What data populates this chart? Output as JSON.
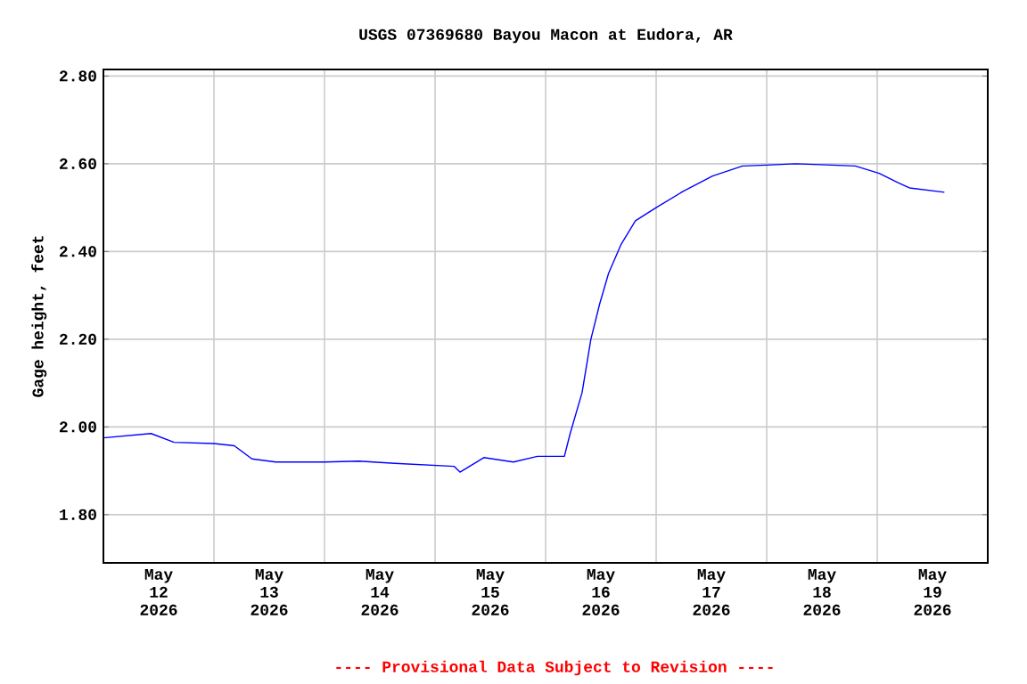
{
  "chart_data": {
    "type": "line",
    "title": "USGS 07369680 Bayou Macon at Eudora, AR",
    "ylabel": "Gage height, feet",
    "annotations": [
      "---- Provisional Data Subject to Revision ----"
    ],
    "x": [
      "2026-05-12T00:00",
      "2026-05-12T10:20",
      "2026-05-12T15:20",
      "2026-05-13T00:00",
      "2026-05-13T04:25",
      "2026-05-13T08:15",
      "2026-05-13T13:25",
      "2026-05-14T00:00",
      "2026-05-14T07:30",
      "2026-05-14T15:15",
      "2026-05-15T04:10",
      "2026-05-15T05:25",
      "2026-05-15T10:35",
      "2026-05-15T17:00",
      "2026-05-15T22:15",
      "2026-05-16T04:05",
      "2026-05-16T05:20",
      "2026-05-16T07:55",
      "2026-05-16T09:50",
      "2026-05-16T11:45",
      "2026-05-16T13:40",
      "2026-05-16T16:20",
      "2026-05-16T19:30",
      "2026-05-17T00:00",
      "2026-05-17T05:50",
      "2026-05-17T12:15",
      "2026-05-17T18:45",
      "2026-05-18T00:00",
      "2026-05-18T06:15",
      "2026-05-18T14:10",
      "2026-05-18T19:15",
      "2026-05-19T00:25",
      "2026-05-19T04:20",
      "2026-05-19T07:00",
      "2026-05-19T14:35"
    ],
    "series": [
      {
        "color": "#0000ff",
        "values": [
          1.975,
          1.985,
          1.965,
          1.962,
          1.957,
          1.927,
          1.92,
          1.92,
          1.922,
          1.917,
          1.91,
          1.897,
          1.93,
          1.92,
          1.933,
          1.933,
          1.985,
          2.078,
          2.2,
          2.281,
          2.35,
          2.415,
          2.47,
          2.5,
          2.537,
          2.572,
          2.595,
          2.597,
          2.6,
          2.597,
          2.595,
          2.578,
          2.558,
          2.545,
          2.535
        ]
      }
    ],
    "xlim": [
      "2026-05-12",
      "2026-05-20"
    ],
    "xticks": [
      {
        "value": "2026-05-12T12:00",
        "label": "May 12 2026"
      },
      {
        "value": "2026-05-13T12:00",
        "label": "May 13 2026"
      },
      {
        "value": "2026-05-14T12:00",
        "label": "May 14 2026"
      },
      {
        "value": "2026-05-15T12:00",
        "label": "May 15 2026"
      },
      {
        "value": "2026-05-16T12:00",
        "label": "May 16 2026"
      },
      {
        "value": "2026-05-17T12:00",
        "label": "May 17 2026"
      },
      {
        "value": "2026-05-18T12:00",
        "label": "May 18 2026"
      },
      {
        "value": "2026-05-19T12:00",
        "label": "May 19 2026"
      },
      {
        "value": "2026-05-13",
        "label": null
      },
      {
        "value": "2026-05-14",
        "label": null
      },
      {
        "value": "2026-05-15",
        "label": null
      },
      {
        "value": "2026-05-16",
        "label": null
      },
      {
        "value": "2026-05-17",
        "label": null
      },
      {
        "value": "2026-05-18",
        "label": null
      },
      {
        "value": "2026-05-19",
        "label": null
      }
    ],
    "ylim": [
      1.69,
      2.815
    ],
    "yticks": [
      {
        "value": 1.8,
        "label": "1.80"
      },
      {
        "value": 2.0,
        "label": "2.00"
      },
      {
        "value": 2.2,
        "label": "2.20"
      },
      {
        "value": 2.4,
        "label": "2.40"
      },
      {
        "value": 2.6,
        "label": "2.60"
      },
      {
        "value": 2.8,
        "label": "2.80"
      }
    ],
    "grid": true,
    "marker": "none",
    "line_style": "solid"
  }
}
